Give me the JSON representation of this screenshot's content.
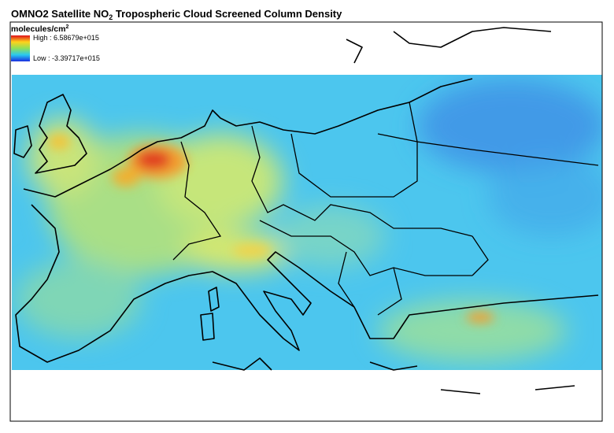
{
  "header": {
    "title": {
      "prefix": "OMNO2 Satellite NO",
      "subscript": "2",
      "suffix": " Tropospheric Cloud Screened Column Density"
    }
  },
  "legend": {
    "units": {
      "base": "molecules/cm",
      "superscript": "2"
    },
    "high": "High : 6.58679e+015",
    "low": "Low : -3.39717e+015"
  }
}
